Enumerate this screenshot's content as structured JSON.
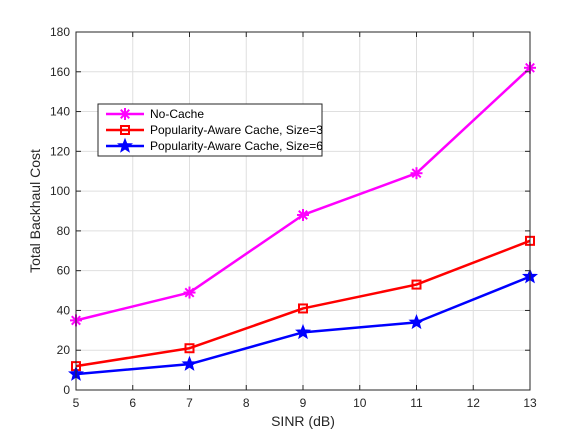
{
  "chart_data": {
    "type": "line",
    "title": "",
    "xlabel": "SINR (dB)",
    "ylabel": "Total Backhaul Cost",
    "xlim": [
      5,
      13
    ],
    "ylim": [
      0,
      180
    ],
    "xticks": [
      5,
      6,
      7,
      8,
      9,
      10,
      11,
      12,
      13
    ],
    "yticks": [
      0,
      20,
      40,
      60,
      80,
      100,
      120,
      140,
      160,
      180
    ],
    "grid": true,
    "legend_position": "upper-left",
    "series": [
      {
        "name": "No-Cache",
        "color": "#ff00ff",
        "marker": "asterisk",
        "x": [
          5,
          7,
          9,
          11,
          13
        ],
        "values": [
          35,
          49,
          88,
          109,
          162
        ]
      },
      {
        "name": "Popularity-Aware Cache, Size=3",
        "color": "#ff0000",
        "marker": "square",
        "x": [
          5,
          7,
          9,
          11,
          13
        ],
        "values": [
          12,
          21,
          41,
          53,
          75
        ]
      },
      {
        "name": "Popularity-Aware Cache, Size=6",
        "color": "#0000ff",
        "marker": "star",
        "x": [
          5,
          7,
          9,
          11,
          13
        ],
        "values": [
          8,
          13,
          29,
          34,
          57
        ]
      }
    ]
  }
}
